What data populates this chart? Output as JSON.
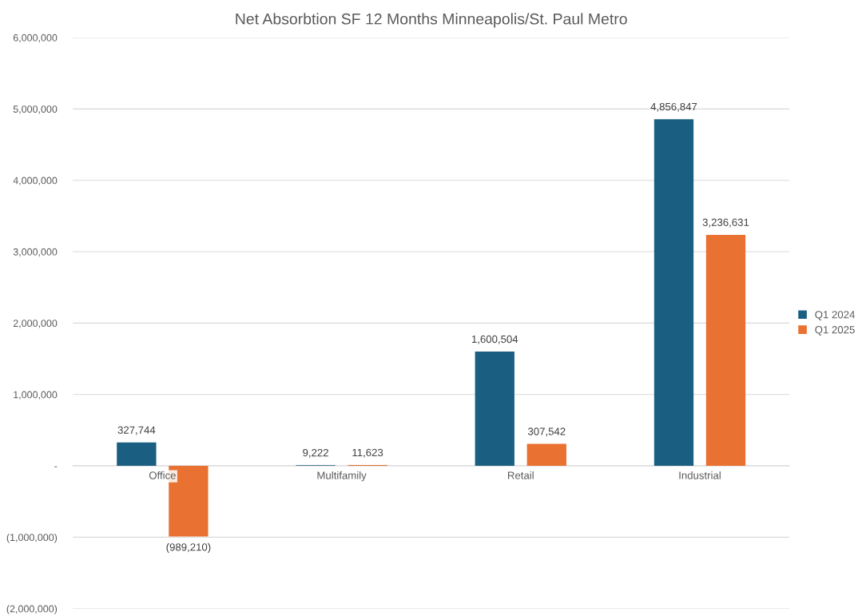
{
  "chart_data": {
    "type": "bar",
    "title": "Net Absorbtion SF 12 Months Minneapolis/St. Paul Metro",
    "categories": [
      "Office",
      "Multifamily",
      "Retail",
      "Industrial"
    ],
    "series": [
      {
        "name": "Q1 2024",
        "color": "#1a5f82",
        "values": [
          327744,
          9222,
          1600504,
          4856847
        ],
        "value_labels": [
          "327,744",
          "9,222",
          "1,600,504",
          "4,856,847"
        ]
      },
      {
        "name": "Q1 2025",
        "color": "#e97132",
        "values": [
          -989210,
          11623,
          307542,
          3236631
        ],
        "value_labels": [
          "(989,210)",
          "11,623",
          "307,542",
          "3,236,631"
        ]
      }
    ],
    "ylim": [
      -2000000,
      6000000
    ],
    "yticks": [
      {
        "value": -2000000,
        "label": "(2,000,000)"
      },
      {
        "value": -1000000,
        "label": "(1,000,000)"
      },
      {
        "value": 0,
        "label": "-"
      },
      {
        "value": 1000000,
        "label": "1,000,000"
      },
      {
        "value": 2000000,
        "label": "2,000,000"
      },
      {
        "value": 3000000,
        "label": "3,000,000"
      },
      {
        "value": 4000000,
        "label": "4,000,000"
      },
      {
        "value": 5000000,
        "label": "5,000,000"
      },
      {
        "value": 6000000,
        "label": "6,000,000"
      }
    ],
    "grid": "y",
    "legend": "right"
  }
}
